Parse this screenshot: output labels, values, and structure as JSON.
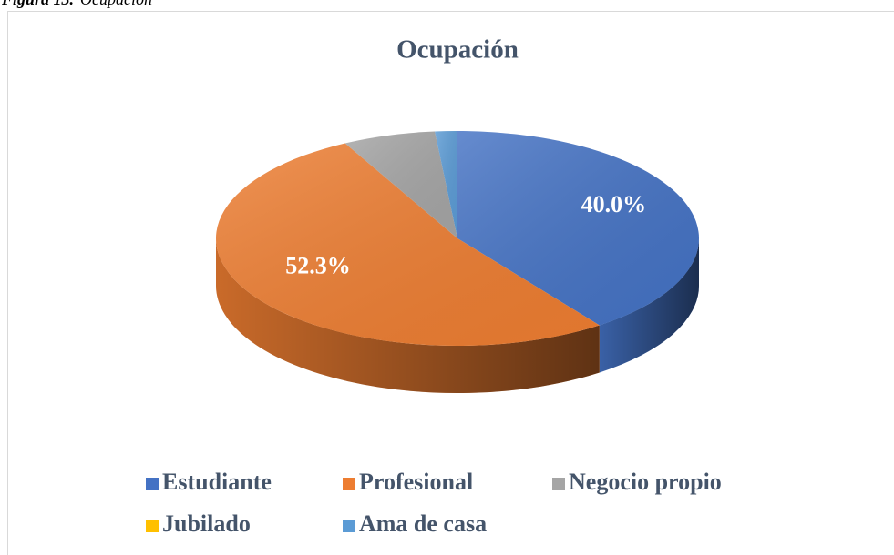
{
  "caption_label": "Figura 13.",
  "caption": "Ocupación",
  "chart_data": {
    "type": "pie3d",
    "title": "Ocupación",
    "categories": [
      "Estudiante",
      "Profesional",
      "Negocio propio",
      "Jubilado",
      "Ama de casa"
    ],
    "values": [
      40.0,
      52.3,
      6.2,
      0,
      1.5
    ],
    "value_labels": [
      "40.0%",
      "52.3%",
      null,
      null,
      null
    ],
    "colors": [
      "#4472c4",
      "#ed7d31",
      "#a5a5a5",
      "#ffc000",
      "#5b9bd5"
    ],
    "legend": "bottom"
  }
}
